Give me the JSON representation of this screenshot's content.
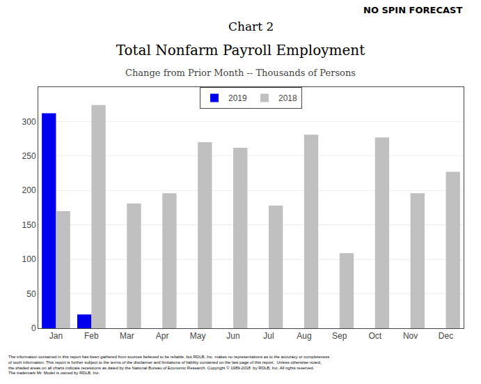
{
  "chart_data": {
    "type": "bar",
    "title": "Total Nonfarm Payroll Employment",
    "subtitle": "Change from Prior Month -- Thousands of Persons",
    "annotations": [
      "Chart 2",
      "NO SPIN FORECAST",
      "The information contained in this report has been gathered from sources believed to be reliable, but RDLB, Inc. makes no representations as to the accuracy or completeness\nof such information. This report is further subject to the terms of the disclaimer and limitations of liability contained on the last page of this report.  Unless otherwise noted,\nthe shaded areas on all charts indicate recessions as dated by the National Bureau of Economic Research. Copyright © 1989-2018  by RDLB, Inc. All rights reserved.\nThe trademark Mr. Model is owned by RDLB, Inc."
    ],
    "categories": [
      "Jan",
      "Feb",
      "Mar",
      "Apr",
      "May",
      "Jun",
      "Jul",
      "Aug",
      "Sep",
      "Oct",
      "Nov",
      "Dec"
    ],
    "series": [
      {
        "name": "2019",
        "color": "#0000ee",
        "values": [
          312,
          20,
          0,
          0,
          0,
          0,
          0,
          0,
          0,
          0,
          0,
          0
        ]
      },
      {
        "name": "2018",
        "color": "#c0c0c0",
        "values": [
          170,
          324,
          181,
          196,
          270,
          262,
          178,
          281,
          109,
          277,
          196,
          227
        ]
      }
    ],
    "ylim": [
      0,
      350
    ],
    "yticks": [
      0,
      50,
      100,
      150,
      200,
      250,
      300
    ],
    "grid": true,
    "legend": "upper center"
  }
}
